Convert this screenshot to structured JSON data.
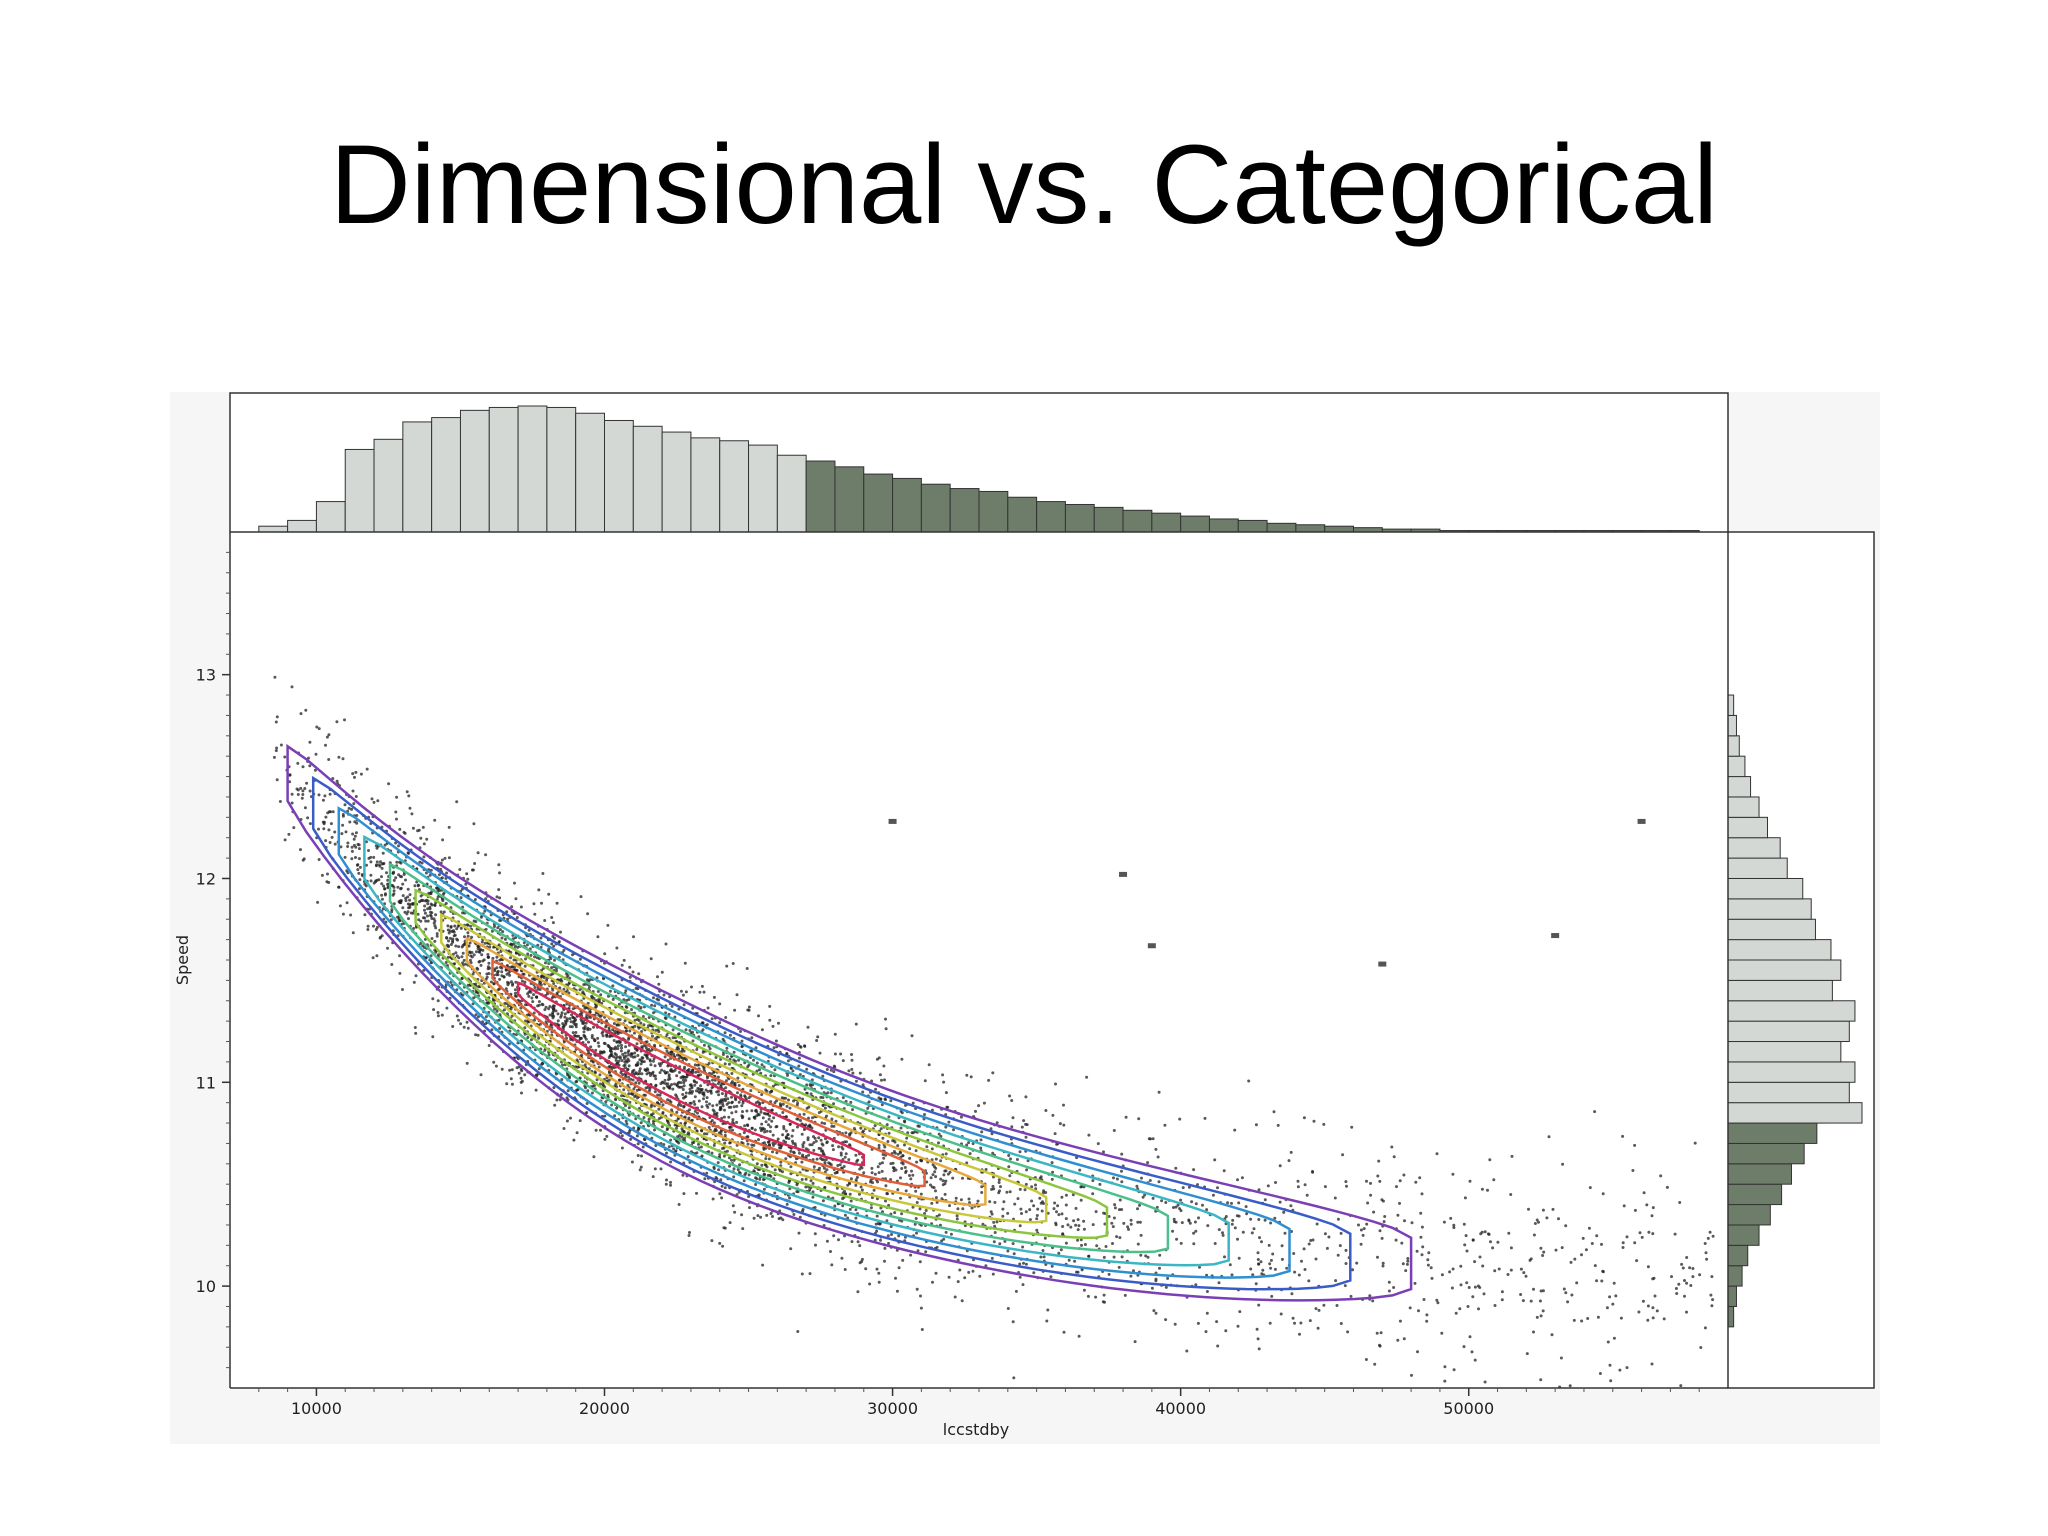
{
  "slide": {
    "title": "Dimensional vs. Categorical"
  },
  "chart_data": {
    "type": "scatter",
    "title": "",
    "xlabel": "lccstdby",
    "ylabel": "Speed",
    "xlim": [
      7000,
      59000
    ],
    "ylim": [
      9.5,
      13.7
    ],
    "x_ticks": [
      10000,
      20000,
      30000,
      40000,
      50000
    ],
    "x_tick_labels": [
      "10000",
      "20000",
      "30000",
      "40000",
      "50000"
    ],
    "y_ticks": [
      10,
      11,
      12,
      13
    ],
    "y_tick_labels": [
      "10",
      "11",
      "12",
      "13"
    ],
    "grid": false,
    "overlay": "density contours",
    "contour_colors": [
      "#7b3fb5",
      "#3a5cc8",
      "#2f8fd0",
      "#3ab6c4",
      "#4cbf8a",
      "#8cc63f",
      "#c8c83a",
      "#e6a93a",
      "#e0603a",
      "#d8285a"
    ],
    "point_color": "#222222",
    "marginal_x_histogram": {
      "bin_width": 1000,
      "bin_start": 8000,
      "split_x": 27000,
      "colors": {
        "below_split": "#d4d8d4",
        "above_split": "#6e7d6a"
      },
      "counts": [
        4,
        8,
        21,
        57,
        64,
        76,
        79,
        84,
        86,
        87,
        86,
        82,
        77,
        73,
        69,
        65,
        63,
        60,
        53,
        49,
        45,
        40,
        37,
        33,
        30,
        28,
        24,
        21,
        19,
        17,
        15,
        13,
        11,
        9,
        8,
        6,
        5,
        4,
        3,
        2,
        2,
        1,
        1,
        1,
        1,
        1,
        1,
        1,
        1,
        1
      ]
    },
    "marginal_y_histogram": {
      "bin_width": 0.1,
      "bin_start": 9.8,
      "split_y": 11.0,
      "colors": {
        "below_split": "#6e7d6a",
        "above_split": "#d4d8d4"
      },
      "counts_below_split": [
        4,
        6,
        10,
        14,
        22,
        30,
        38,
        45,
        54,
        63,
        70,
        75
      ],
      "counts_above_split": [
        95,
        86,
        90,
        80,
        86,
        90,
        74,
        80,
        73,
        62,
        59,
        53,
        42,
        37,
        28,
        22,
        16,
        12,
        8,
        6,
        4
      ]
    },
    "outlier_points": [
      {
        "x": 30000,
        "y": 12.28
      },
      {
        "x": 38000,
        "y": 12.02
      },
      {
        "x": 39000,
        "y": 11.67
      },
      {
        "x": 47000,
        "y": 11.58
      },
      {
        "x": 53000,
        "y": 11.72
      },
      {
        "x": 56000,
        "y": 12.28
      }
    ]
  }
}
